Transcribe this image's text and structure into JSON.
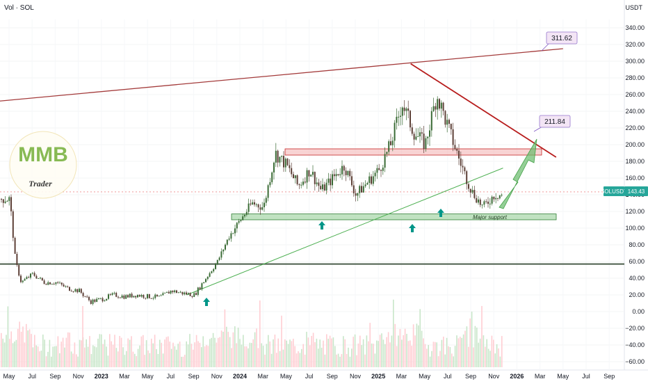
{
  "header": {
    "symbol_label": "Vol · SOL",
    "currency": "USDT"
  },
  "price_badge": {
    "label": "SOLUSDT",
    "value": "143.43",
    "color": "#26a69a"
  },
  "callouts": [
    {
      "text": "311.62"
    },
    {
      "text": "211.84"
    }
  ],
  "annotation": {
    "text": "Major support"
  },
  "logo": {
    "letters": "MMB",
    "caption": "Trader"
  },
  "colors": {
    "up": "#3a6b35",
    "down": "#5d4037",
    "resistance": "#b71c1c",
    "support_zone": "#8bc34a",
    "trendline": "#4caf50",
    "arrow": "#009688",
    "projection": "#66bb6a",
    "volume_up": "#c8e6c9",
    "volume_down": "#ffcdd2"
  },
  "chart_data": {
    "type": "candlestick",
    "y_axis_ticks": [
      "340.00",
      "320.00",
      "300.00",
      "280.00",
      "260.00",
      "240.00",
      "220.00",
      "200.00",
      "180.00",
      "160.00",
      "140.00",
      "120.00",
      "100.00",
      "80.00",
      "60.00",
      "40.00",
      "20.00",
      "0.00",
      "−20.00",
      "−40.00",
      "−60.00"
    ],
    "ylim": [
      -60,
      340
    ],
    "x_axis_ticks": [
      "May",
      "Jul",
      "Sep",
      "Nov",
      "2023",
      "Mar",
      "May",
      "Jul",
      "Sep",
      "Nov",
      "2024",
      "Mar",
      "May",
      "Jul",
      "Sep",
      "Nov",
      "2025",
      "Mar",
      "May",
      "Jul",
      "Sep",
      "Nov",
      "2026",
      "Mar",
      "May",
      "Jul",
      "Sep"
    ],
    "price_path": [
      [
        0,
        135
      ],
      [
        0.25,
        60
      ],
      [
        0.5,
        35
      ],
      [
        1,
        45
      ],
      [
        1.5,
        35
      ],
      [
        2,
        35
      ],
      [
        2.5,
        28
      ],
      [
        3,
        25
      ],
      [
        3.5,
        12
      ],
      [
        4,
        15
      ],
      [
        4.5,
        20
      ],
      [
        5,
        18
      ],
      [
        5.5,
        20
      ],
      [
        6,
        18
      ],
      [
        6.5,
        17
      ],
      [
        7,
        25
      ],
      [
        7.5,
        22
      ],
      [
        8,
        20
      ],
      [
        8.5,
        40
      ],
      [
        9,
        60
      ],
      [
        9.5,
        90
      ],
      [
        10,
        110
      ],
      [
        10.5,
        130
      ],
      [
        11,
        125
      ],
      [
        11.5,
        190
      ],
      [
        12,
        175
      ],
      [
        12.5,
        150
      ],
      [
        13,
        170
      ],
      [
        13.5,
        145
      ],
      [
        14,
        160
      ],
      [
        14.5,
        175
      ],
      [
        15,
        140
      ],
      [
        15.5,
        155
      ],
      [
        16,
        170
      ],
      [
        16.5,
        200
      ],
      [
        17,
        250
      ],
      [
        17.5,
        215
      ],
      [
        18,
        200
      ],
      [
        18.5,
        260
      ],
      [
        19,
        220
      ],
      [
        19.5,
        180
      ],
      [
        20,
        145
      ],
      [
        20.5,
        125
      ],
      [
        21,
        140
      ],
      [
        21.5,
        140
      ],
      [
        22,
        165
      ],
      [
        22.5,
        180
      ],
      [
        23,
        155
      ],
      [
        23.5,
        150
      ],
      [
        24,
        175
      ],
      [
        24.5,
        190
      ],
      [
        25,
        245
      ],
      [
        25.5,
        205
      ],
      [
        26,
        190
      ],
      [
        26.5,
        160
      ],
      [
        27,
        135
      ]
    ],
    "levels": [
      {
        "name": "Resistance zone",
        "from": 190,
        "to": 195
      },
      {
        "name": "Major support",
        "from": 110,
        "to": 117
      },
      {
        "name": "Horizontal level",
        "value": 57
      }
    ],
    "trendlines": [
      {
        "name": "Upper trendline",
        "points": [
          [
            -0.5,
            252
          ],
          [
            24,
            315
          ]
        ]
      },
      {
        "name": "Descending resistance",
        "points": [
          [
            17.4,
            297
          ],
          [
            23.7,
            185
          ]
        ]
      },
      {
        "name": "Rising support",
        "points": [
          [
            7.7,
            20
          ],
          [
            21.4,
            172
          ]
        ]
      }
    ],
    "volume_range": [
      -60,
      0
    ]
  }
}
